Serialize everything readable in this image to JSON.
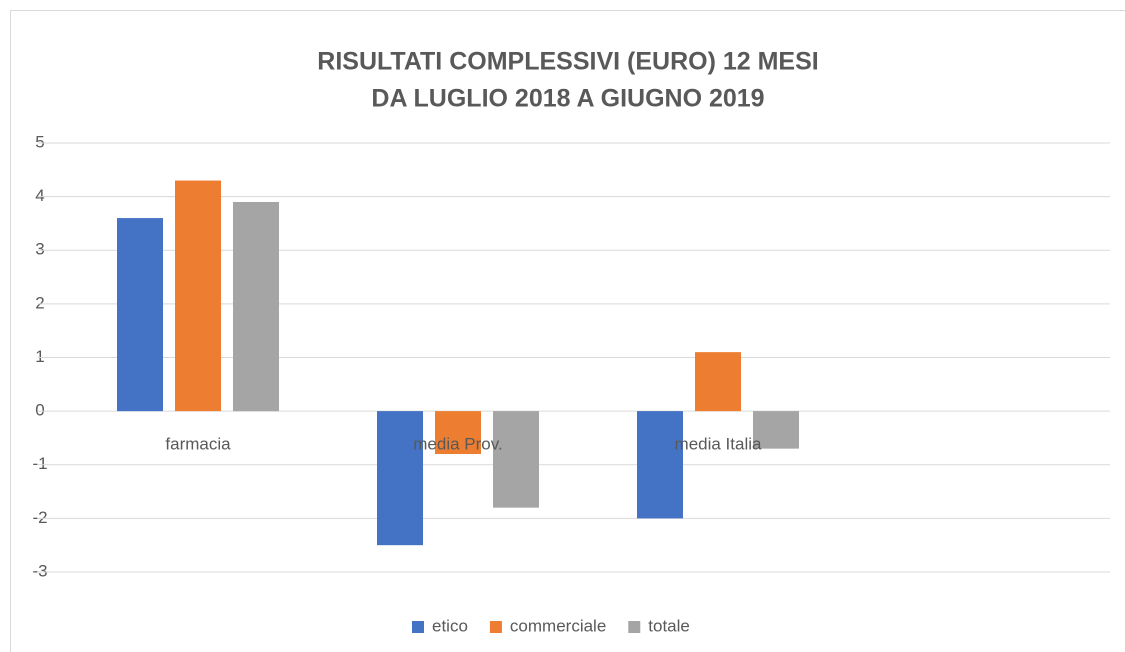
{
  "chart_data": {
    "type": "bar",
    "title": [
      "RISULTATI COMPLESSIVI (EURO) 12 MESI",
      "DA LUGLIO 2018 A GIUGNO 2019"
    ],
    "categories": [
      "farmacia",
      "media Prov.",
      "media Italia",
      null
    ],
    "series": [
      {
        "name": "etico",
        "color": "#4472c4",
        "values": [
          3.6,
          -2.5,
          -2.0,
          null
        ]
      },
      {
        "name": "commerciale",
        "color": "#ed7d31",
        "values": [
          4.3,
          -0.8,
          1.1,
          null
        ]
      },
      {
        "name": "totale",
        "color": "#a5a5a5",
        "values": [
          3.9,
          -1.8,
          -0.7,
          null
        ]
      }
    ],
    "ylim": [
      -3,
      5
    ],
    "yticks": [
      -3,
      -2,
      -1,
      0,
      1,
      2,
      3,
      4,
      5
    ],
    "grid": true,
    "legend": "bottom"
  }
}
